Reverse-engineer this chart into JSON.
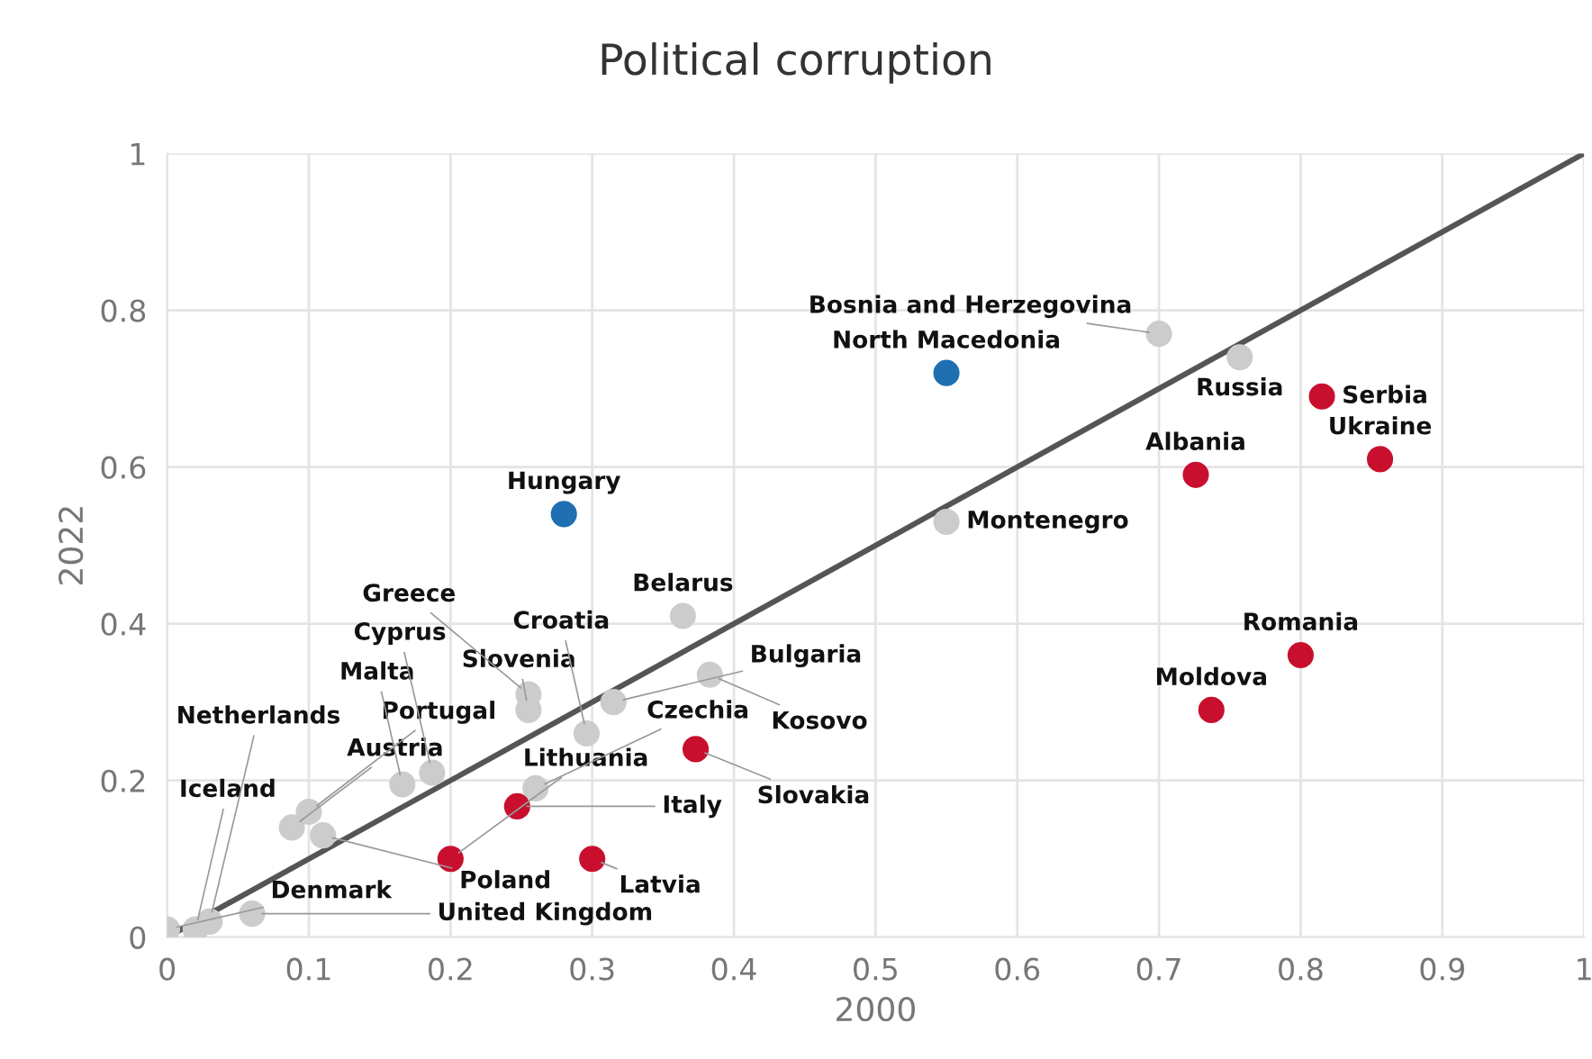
{
  "chart_data": {
    "type": "scatter",
    "title": "Political corruption",
    "xlabel": "2000",
    "ylabel": "2022",
    "xlim": [
      0,
      1
    ],
    "ylim": [
      0,
      1
    ],
    "xticks": [
      0,
      0.1,
      0.2,
      0.3,
      0.4,
      0.5,
      0.6,
      0.7,
      0.8,
      0.9,
      1
    ],
    "yticks": [
      0,
      0.2,
      0.4,
      0.6,
      0.8,
      1
    ],
    "grid": true,
    "legend": false,
    "marker": "circle",
    "series": [
      {
        "type": "line",
        "color": "#555555",
        "marker": "none",
        "x": [
          0,
          1
        ],
        "values": [
          0,
          1
        ]
      },
      {
        "color": "#cccccc",
        "x": [
          0.7,
          0.757,
          0.55,
          0.364,
          0.383,
          0.296,
          0.315,
          0.255,
          0.255,
          0.187,
          0.166,
          0.26,
          0.088,
          0.1,
          0.11,
          0.06,
          0.02,
          0.03,
          0.0
        ],
        "values": [
          0.77,
          0.74,
          0.53,
          0.41,
          0.335,
          0.26,
          0.3,
          0.31,
          0.29,
          0.21,
          0.195,
          0.19,
          0.14,
          0.16,
          0.13,
          0.03,
          0.01,
          0.02,
          0.01
        ]
      },
      {
        "color": "#c8102e",
        "x": [
          0.815,
          0.856,
          0.726,
          0.8,
          0.737,
          0.373,
          0.247,
          0.2,
          0.3
        ],
        "values": [
          0.69,
          0.61,
          0.59,
          0.36,
          0.29,
          0.24,
          0.167,
          0.1,
          0.1
        ]
      },
      {
        "color": "#1f6fb2",
        "x": [
          0.28,
          0.55
        ],
        "values": [
          0.54,
          0.72
        ]
      }
    ],
    "annotations": [
      {
        "text": "Bosnia and Herzegovina",
        "x": 0.7,
        "y": 0.77
      },
      {
        "text": "Russia",
        "x": 0.757,
        "y": 0.74
      },
      {
        "text": "Montenegro",
        "x": 0.55,
        "y": 0.53
      },
      {
        "text": "Belarus",
        "x": 0.364,
        "y": 0.41
      },
      {
        "text": "Kosovo",
        "x": 0.383,
        "y": 0.335
      },
      {
        "text": "Croatia",
        "x": 0.296,
        "y": 0.26
      },
      {
        "text": "Bulgaria",
        "x": 0.315,
        "y": 0.3
      },
      {
        "text": "Greece",
        "x": 0.255,
        "y": 0.31
      },
      {
        "text": "Slovenia",
        "x": 0.255,
        "y": 0.29
      },
      {
        "text": "Cyprus",
        "x": 0.187,
        "y": 0.21
      },
      {
        "text": "Malta",
        "x": 0.166,
        "y": 0.195
      },
      {
        "text": "Czechia",
        "x": 0.26,
        "y": 0.19
      },
      {
        "text": "Austria",
        "x": 0.088,
        "y": 0.14
      },
      {
        "text": "Portugal",
        "x": 0.1,
        "y": 0.16
      },
      {
        "text": "Poland",
        "x": 0.11,
        "y": 0.13
      },
      {
        "text": "United Kingdom",
        "x": 0.06,
        "y": 0.03
      },
      {
        "text": "Iceland",
        "x": 0.02,
        "y": 0.01
      },
      {
        "text": "Netherlands",
        "x": 0.03,
        "y": 0.02
      },
      {
        "text": "Denmark",
        "x": 0.0,
        "y": 0.01
      },
      {
        "text": "Serbia",
        "x": 0.815,
        "y": 0.69
      },
      {
        "text": "Ukraine",
        "x": 0.856,
        "y": 0.61
      },
      {
        "text": "Albania",
        "x": 0.726,
        "y": 0.59
      },
      {
        "text": "Romania",
        "x": 0.8,
        "y": 0.36
      },
      {
        "text": "Moldova",
        "x": 0.737,
        "y": 0.29
      },
      {
        "text": "Slovakia",
        "x": 0.373,
        "y": 0.24
      },
      {
        "text": "Italy",
        "x": 0.247,
        "y": 0.167
      },
      {
        "text": "Lithuania",
        "x": 0.2,
        "y": 0.1
      },
      {
        "text": "Latvia",
        "x": 0.3,
        "y": 0.1
      },
      {
        "text": "Hungary",
        "x": 0.28,
        "y": 0.54
      },
      {
        "text": "North Macedonia",
        "x": 0.55,
        "y": 0.72
      }
    ]
  }
}
